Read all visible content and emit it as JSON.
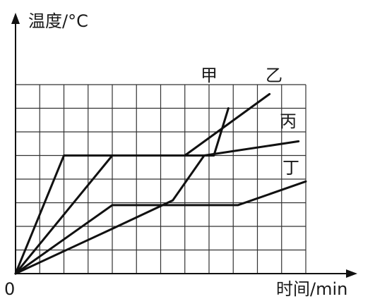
{
  "chart_data": {
    "type": "line",
    "ylabel": "温度/°C",
    "xlabel": "时间/min",
    "origin_label": "0",
    "xlim": [
      0,
      12
    ],
    "ylim": [
      0,
      8
    ],
    "grid": true,
    "axis_ticks_labeled": false,
    "series": [
      {
        "name": "甲",
        "x": [
          0,
          2,
          8.2,
          8.5,
          8.8
        ],
        "y": [
          0,
          5,
          5,
          6,
          7
        ]
      },
      {
        "name": "乙",
        "x": [
          0,
          4,
          7,
          10.5
        ],
        "y": [
          0,
          5,
          5,
          7.6
        ]
      },
      {
        "name": "丙",
        "x": [
          0,
          4,
          6.5,
          7.8,
          11.7
        ],
        "y": [
          0,
          1.9,
          3.1,
          5,
          5.6
        ]
      },
      {
        "name": "丁",
        "x": [
          0,
          4,
          9.2,
          12
        ],
        "y": [
          0,
          2.9,
          2.9,
          3.9
        ]
      }
    ]
  }
}
